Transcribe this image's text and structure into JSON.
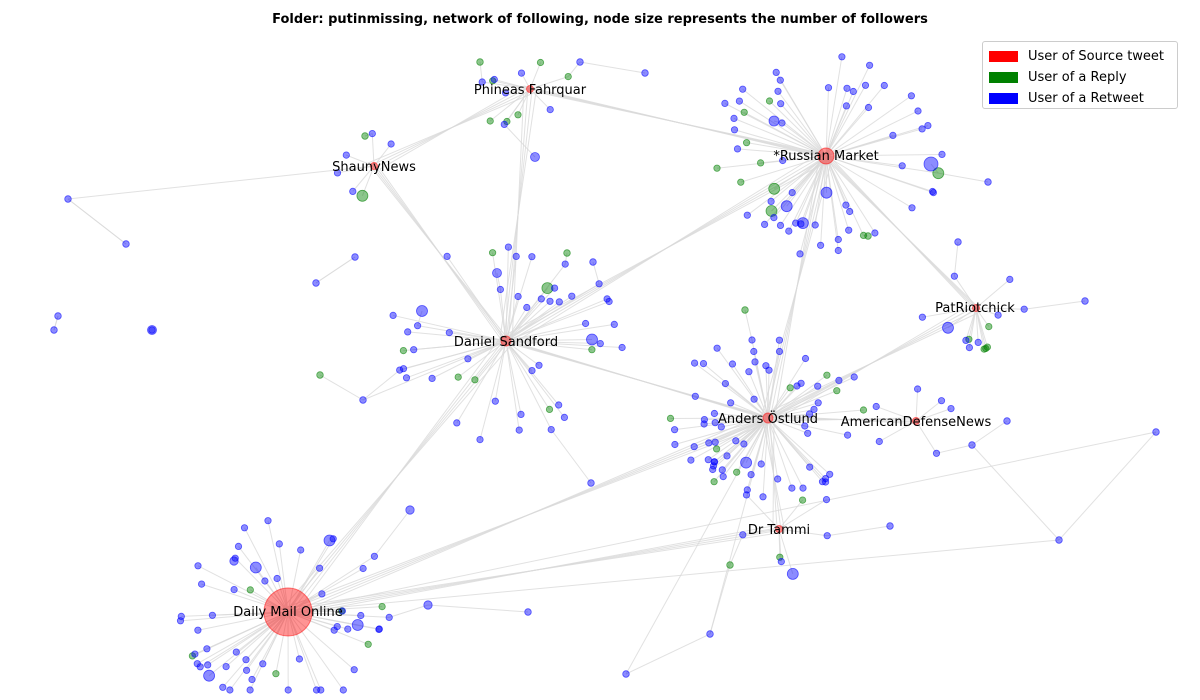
{
  "title": "Folder: putinmissing, network of following, node size represents the number of followers",
  "colors": {
    "source": "#ff0000",
    "reply": "#008000",
    "retweet": "#0000ff",
    "edge": "#d9d9d9"
  },
  "legend": [
    {
      "label": "User of Source tweet",
      "color": "#ff0000"
    },
    {
      "label": "User of a Reply",
      "color": "#008000"
    },
    {
      "label": "User of a Retweet",
      "color": "#0000ff"
    }
  ],
  "labeled_nodes": [
    {
      "id": "dailymail",
      "label": "Daily Mail Online",
      "type": "source",
      "followers_rank": 10
    },
    {
      "id": "russianmarket",
      "label": "*Russian Market",
      "type": "source",
      "followers_rank": 4
    },
    {
      "id": "anders",
      "label": "Anders Östlund",
      "type": "source",
      "followers_rank": 2
    },
    {
      "id": "sandford",
      "label": "Daniel Sandford",
      "type": "source",
      "followers_rank": 2
    },
    {
      "id": "phineas",
      "label": "Phineas Fahrquar",
      "type": "source",
      "followers_rank": 1
    },
    {
      "id": "shauny",
      "label": "ShaunyNews",
      "type": "source",
      "followers_rank": 1
    },
    {
      "id": "patriotchick",
      "label": "PatRiotchick",
      "type": "source",
      "followers_rank": 1
    },
    {
      "id": "americandefense",
      "label": "AmericanDefenseNews",
      "type": "source",
      "followers_rank": 1
    },
    {
      "id": "drtammi",
      "label": "Dr Tammi",
      "type": "source",
      "followers_rank": 1
    }
  ]
}
